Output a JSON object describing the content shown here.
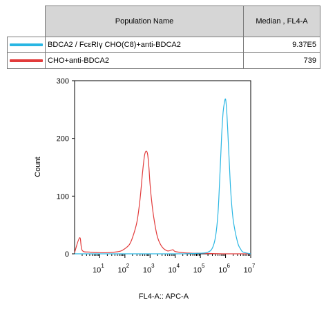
{
  "legend": {
    "header_name": "Population Name",
    "header_median": "Median , FL4-A",
    "rows": [
      {
        "name": "BDCA2 / FcεRIγ CHO(C8)+anti-BDCA2",
        "median": "9.37E5",
        "color": "#29b6e3"
      },
      {
        "name": "CHO+anti-BDCA2",
        "median": "739",
        "color": "#e23b3b"
      }
    ]
  },
  "chart_data": {
    "type": "line",
    "xlabel": "FL4-A:: APC-A",
    "ylabel": "Count",
    "xscale": "log",
    "xlim": [
      1,
      10000000
    ],
    "ylim": [
      0,
      300
    ],
    "y_ticks": [
      0,
      100,
      200,
      300
    ],
    "x_ticks": [
      {
        "base": "10",
        "exp": "1"
      },
      {
        "base": "10",
        "exp": "2"
      },
      {
        "base": "10",
        "exp": "3"
      },
      {
        "base": "10",
        "exp": "4"
      },
      {
        "base": "10",
        "exp": "5"
      },
      {
        "base": "10",
        "exp": "6"
      },
      {
        "base": "10",
        "exp": "7"
      }
    ],
    "series": [
      {
        "name": "CHO+anti-BDCA2",
        "color": "#e23b3b",
        "x": [
          1,
          1.6,
          2,
          4,
          10,
          20,
          40,
          70,
          100,
          150,
          200,
          300,
          400,
          500,
          600,
          700,
          800,
          900,
          1000,
          1200,
          1500,
          2000,
          3000,
          5000,
          8000,
          10000,
          20000,
          50000,
          100000,
          1000000,
          10000000
        ],
        "y": [
          2,
          28,
          6,
          3,
          2,
          2,
          3,
          5,
          9,
          16,
          28,
          55,
          95,
          140,
          170,
          178,
          172,
          150,
          120,
          85,
          55,
          28,
          12,
          5,
          7,
          4,
          2,
          1,
          1,
          0,
          0
        ]
      },
      {
        "name": "BDCA2 / FcεRIγ CHO(C8)+anti-BDCA2",
        "color": "#29b6e3",
        "x": [
          1,
          100,
          10000,
          100000,
          200000,
          300000,
          400000,
          500000,
          600000,
          700000,
          800000,
          900000,
          1000000,
          1100000,
          1200000,
          1400000,
          1600000,
          2000000,
          3000000,
          4000000,
          5000000,
          10000000
        ],
        "y": [
          0,
          0,
          0,
          1,
          3,
          10,
          30,
          70,
          140,
          205,
          245,
          262,
          268,
          250,
          220,
          160,
          110,
          60,
          20,
          8,
          3,
          0
        ]
      }
    ]
  }
}
